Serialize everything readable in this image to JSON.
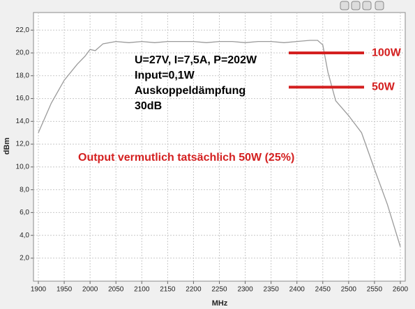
{
  "chart_data": {
    "type": "line",
    "xlabel": "MHz",
    "ylabel": "dBm",
    "x": [
      1900,
      1925,
      1950,
      1975,
      1990,
      2000,
      2010,
      2025,
      2050,
      2075,
      2100,
      2125,
      2150,
      2175,
      2200,
      2225,
      2250,
      2275,
      2300,
      2325,
      2350,
      2375,
      2400,
      2425,
      2440,
      2450,
      2460,
      2475,
      2500,
      2525,
      2550,
      2575,
      2600
    ],
    "series": [
      {
        "name": "dBm",
        "color": "#9a9a9a",
        "values": [
          13.0,
          15.6,
          17.6,
          19.0,
          19.7,
          20.3,
          20.2,
          20.8,
          21.0,
          20.9,
          21.0,
          20.9,
          21.0,
          21.0,
          21.0,
          20.9,
          21.0,
          21.0,
          20.9,
          21.0,
          21.0,
          20.9,
          21.0,
          21.1,
          21.1,
          20.7,
          18.3,
          15.8,
          14.5,
          13.0,
          9.8,
          6.7,
          3.0
        ]
      }
    ],
    "xlim": [
      1900,
      2600
    ],
    "xticks": [
      1900,
      1950,
      2000,
      2050,
      2100,
      2150,
      2200,
      2250,
      2300,
      2350,
      2400,
      2450,
      2500,
      2550,
      2600
    ],
    "ylim": [
      0,
      23.5
    ],
    "yticks": [
      {
        "value": 2,
        "label": "2,0"
      },
      {
        "value": 4,
        "label": "4,0"
      },
      {
        "value": 6,
        "label": "6,0"
      },
      {
        "value": 8,
        "label": "8,0"
      },
      {
        "value": 10,
        "label": "10,0"
      },
      {
        "value": 12,
        "label": "12,0"
      },
      {
        "value": 14,
        "label": "14,0"
      },
      {
        "value": 16,
        "label": "16,0"
      },
      {
        "value": 18,
        "label": "18,0"
      },
      {
        "value": 20,
        "label": "20,0"
      },
      {
        "value": 22,
        "label": "22,0"
      }
    ],
    "grid": true,
    "notes": [
      "U=27V, I=7,5A, P=202W",
      "Input=0,1W",
      "Auskoppeldämpfung",
      "30dB"
    ],
    "output_note": "Output vermutlich tatsächlich 50W (25%)",
    "reference_lines": [
      {
        "label": "100W",
        "value": 20,
        "color": "#d42020"
      },
      {
        "label": "50W",
        "value": 17,
        "color": "#d42020"
      }
    ]
  }
}
